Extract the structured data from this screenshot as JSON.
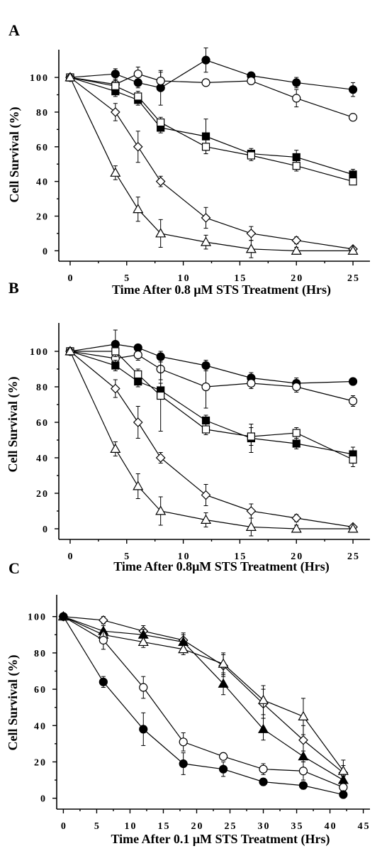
{
  "figure": {
    "panels": [
      "A",
      "B",
      "C"
    ]
  },
  "chart_data": [
    {
      "type": "line",
      "panel_label": "A",
      "xlabel": "Time After 0.8 μM STS Treatment (Hrs)",
      "ylabel": "Cell Survival (%)",
      "xlim": [
        -1,
        26.5
      ],
      "ylim": [
        -6,
        116
      ],
      "xticks": [
        0,
        5,
        10,
        15,
        20,
        25
      ],
      "yticks": [
        0,
        20,
        40,
        60,
        80,
        100
      ],
      "xtick_labels": [
        "0",
        "5",
        "10",
        "15",
        "20",
        "25"
      ],
      "ytick_labels": [
        "0",
        "20",
        "40",
        "60",
        "80",
        "100"
      ],
      "series": [
        {
          "marker": "filled-circle",
          "x": [
            0,
            4,
            6,
            8,
            12,
            16,
            20,
            25
          ],
          "y": [
            100,
            102,
            97,
            94,
            110,
            101,
            97,
            93
          ],
          "err": [
            0,
            3,
            3,
            10,
            7,
            2,
            3,
            4
          ]
        },
        {
          "marker": "open-circle",
          "x": [
            0,
            4,
            6,
            8,
            12,
            16,
            20,
            25
          ],
          "y": [
            100,
            96,
            102,
            98,
            97,
            98,
            88,
            77
          ],
          "err": [
            0,
            3,
            4,
            5,
            2,
            2,
            5,
            2
          ]
        },
        {
          "marker": "filled-square",
          "x": [
            0,
            4,
            6,
            8,
            12,
            16,
            20,
            25
          ],
          "y": [
            100,
            92,
            87,
            71,
            66,
            56,
            54,
            44
          ],
          "err": [
            0,
            3,
            3,
            3,
            10,
            3,
            4,
            3
          ]
        },
        {
          "marker": "open-square",
          "x": [
            0,
            4,
            6,
            8,
            12,
            16,
            20,
            25
          ],
          "y": [
            100,
            95,
            89,
            74,
            60,
            55,
            49,
            40
          ],
          "err": [
            0,
            3,
            3,
            3,
            4,
            3,
            3,
            2
          ]
        },
        {
          "marker": "open-diamond",
          "x": [
            0,
            4,
            6,
            8,
            12,
            16,
            20,
            25
          ],
          "y": [
            100,
            80,
            60,
            40,
            19,
            10,
            6,
            1
          ],
          "err": [
            0,
            5,
            9,
            3,
            6,
            4,
            2,
            1
          ]
        },
        {
          "marker": "open-triangle",
          "x": [
            0,
            4,
            6,
            8,
            12,
            16,
            20,
            25
          ],
          "y": [
            100,
            45,
            24,
            10,
            5,
            1,
            0,
            0
          ],
          "err": [
            0,
            4,
            7,
            8,
            4,
            5,
            2,
            1
          ]
        }
      ]
    },
    {
      "type": "line",
      "panel_label": "B",
      "xlabel": "Time After 0.8μM STS Treatment (Hrs)",
      "ylabel": "Cell Survival (%)",
      "xlim": [
        -1,
        26.5
      ],
      "ylim": [
        -6,
        116
      ],
      "xticks": [
        0,
        5,
        10,
        15,
        20,
        25
      ],
      "yticks": [
        0,
        20,
        40,
        60,
        80,
        100
      ],
      "xtick_labels": [
        "0",
        "5",
        "10",
        "15",
        "20",
        "25"
      ],
      "ytick_labels": [
        "0",
        "20",
        "40",
        "60",
        "80",
        "100"
      ],
      "series": [
        {
          "marker": "filled-circle",
          "x": [
            0,
            4,
            6,
            8,
            12,
            16,
            20,
            25
          ],
          "y": [
            100,
            104,
            102,
            97,
            92,
            85,
            82,
            83
          ],
          "err": [
            0,
            8,
            2,
            3,
            3,
            3,
            3,
            2
          ]
        },
        {
          "marker": "open-circle",
          "x": [
            0,
            4,
            6,
            8,
            12,
            16,
            20,
            25
          ],
          "y": [
            100,
            96,
            98,
            90,
            80,
            82,
            80,
            72
          ],
          "err": [
            0,
            4,
            3,
            6,
            12,
            3,
            3,
            3
          ]
        },
        {
          "marker": "filled-square",
          "x": [
            0,
            4,
            6,
            8,
            12,
            16,
            20,
            25
          ],
          "y": [
            100,
            92,
            83,
            78,
            61,
            51,
            48,
            42
          ],
          "err": [
            0,
            3,
            3,
            4,
            3,
            8,
            3,
            4
          ]
        },
        {
          "marker": "open-square",
          "x": [
            0,
            4,
            6,
            8,
            12,
            16,
            20,
            25
          ],
          "y": [
            100,
            100,
            87,
            75,
            56,
            52,
            54,
            39
          ],
          "err": [
            0,
            3,
            3,
            20,
            3,
            5,
            3,
            4
          ]
        },
        {
          "marker": "open-diamond",
          "x": [
            0,
            4,
            6,
            8,
            12,
            16,
            20,
            25
          ],
          "y": [
            100,
            79,
            60,
            40,
            19,
            10,
            6,
            1
          ],
          "err": [
            0,
            5,
            9,
            3,
            6,
            4,
            2,
            1
          ]
        },
        {
          "marker": "open-triangle",
          "x": [
            0,
            4,
            6,
            8,
            12,
            16,
            20,
            25
          ],
          "y": [
            100,
            45,
            24,
            10,
            5,
            1,
            0,
            0
          ],
          "err": [
            0,
            4,
            7,
            8,
            4,
            5,
            2,
            1
          ]
        }
      ]
    },
    {
      "type": "line",
      "panel_label": "C",
      "xlabel": "Time After 0.1 μM STS Treatment (Hrs)",
      "ylabel": "Cell Survival (%)",
      "xlim": [
        -1,
        46
      ],
      "ylim": [
        -6,
        112
      ],
      "xticks": [
        0,
        5,
        10,
        15,
        20,
        25,
        30,
        35,
        40,
        45
      ],
      "yticks": [
        0,
        20,
        40,
        60,
        80,
        100
      ],
      "xtick_labels": [
        "0",
        "5",
        "10",
        "15",
        "20",
        "25",
        "30",
        "35",
        "40",
        "45"
      ],
      "ytick_labels": [
        "0",
        "20",
        "40",
        "60",
        "80",
        "100"
      ],
      "series": [
        {
          "marker": "open-diamond",
          "x": [
            0,
            6,
            12,
            18,
            24,
            30,
            36,
            42
          ],
          "y": [
            100,
            98,
            92,
            87,
            73,
            52,
            32,
            14
          ],
          "err": [
            0,
            2,
            3,
            4,
            6,
            8,
            8,
            4
          ]
        },
        {
          "marker": "filled-triangle",
          "x": [
            0,
            6,
            12,
            18,
            24,
            30,
            36,
            42
          ],
          "y": [
            100,
            92,
            90,
            86,
            63,
            38,
            23,
            10
          ],
          "err": [
            0,
            3,
            3,
            4,
            6,
            6,
            3,
            2
          ]
        },
        {
          "marker": "open-triangle",
          "x": [
            0,
            6,
            12,
            18,
            24,
            30,
            36,
            42
          ],
          "y": [
            100,
            90,
            86,
            82,
            74,
            54,
            45,
            15
          ],
          "err": [
            0,
            3,
            3,
            3,
            6,
            8,
            10,
            6
          ]
        },
        {
          "marker": "open-circle",
          "x": [
            0,
            6,
            12,
            18,
            24,
            30,
            36,
            42
          ],
          "y": [
            100,
            87,
            61,
            31,
            23,
            16,
            15,
            6
          ],
          "err": [
            0,
            5,
            6,
            5,
            2,
            3,
            5,
            3
          ]
        },
        {
          "marker": "filled-circle",
          "x": [
            0,
            6,
            12,
            18,
            24,
            30,
            36,
            42
          ],
          "y": [
            100,
            64,
            38,
            19,
            16,
            9,
            7,
            2
          ],
          "err": [
            0,
            3,
            9,
            6,
            4,
            2,
            2,
            1
          ]
        }
      ]
    }
  ]
}
